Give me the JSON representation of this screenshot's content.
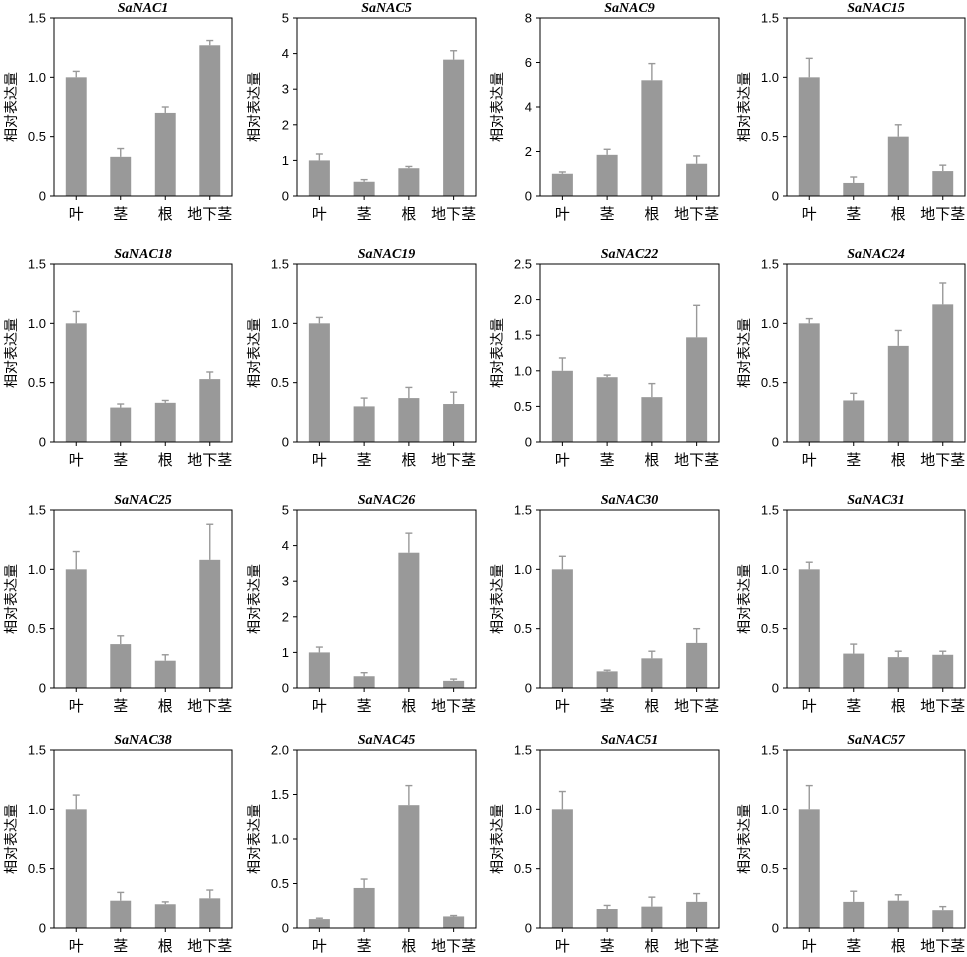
{
  "chart_data": [
    {
      "type": "bar",
      "title": "SaNAC1",
      "ylabel": "相对表达量",
      "categories": [
        "叶",
        "茎",
        "根",
        "地下茎"
      ],
      "values": [
        1.0,
        0.33,
        0.7,
        1.27
      ],
      "errors": [
        0.05,
        0.07,
        0.05,
        0.04
      ],
      "ylim": [
        0,
        1.5
      ],
      "yticks": [
        "0",
        "0.5",
        "1.0",
        "1.5"
      ],
      "ytick_values": [
        0,
        0.5,
        1.0,
        1.5
      ]
    },
    {
      "type": "bar",
      "title": "SaNAC5",
      "ylabel": "相对表达量",
      "categories": [
        "叶",
        "茎",
        "根",
        "地下茎"
      ],
      "values": [
        1.0,
        0.4,
        0.78,
        3.83
      ],
      "errors": [
        0.18,
        0.06,
        0.05,
        0.25
      ],
      "ylim": [
        0,
        5
      ],
      "yticks": [
        "0",
        "1",
        "2",
        "3",
        "4",
        "5"
      ],
      "ytick_values": [
        0,
        1,
        2,
        3,
        4,
        5
      ]
    },
    {
      "type": "bar",
      "title": "SaNAC9",
      "ylabel": "相对表达量",
      "categories": [
        "叶",
        "茎",
        "根",
        "地下茎"
      ],
      "values": [
        1.0,
        1.85,
        5.2,
        1.45
      ],
      "errors": [
        0.08,
        0.25,
        0.75,
        0.35
      ],
      "ylim": [
        0,
        8
      ],
      "yticks": [
        "0",
        "2",
        "4",
        "6",
        "8"
      ],
      "ytick_values": [
        0,
        2,
        4,
        6,
        8
      ]
    },
    {
      "type": "bar",
      "title": "SaNAC15",
      "ylabel": "相对表达量",
      "categories": [
        "叶",
        "茎",
        "根",
        "地下茎"
      ],
      "values": [
        1.0,
        0.11,
        0.5,
        0.21
      ],
      "errors": [
        0.16,
        0.05,
        0.1,
        0.05
      ],
      "ylim": [
        0,
        1.5
      ],
      "yticks": [
        "0",
        "0.5",
        "1.0",
        "1.5"
      ],
      "ytick_values": [
        0,
        0.5,
        1.0,
        1.5
      ]
    },
    {
      "type": "bar",
      "title": "SaNAC18",
      "ylabel": "相对表达量",
      "categories": [
        "叶",
        "茎",
        "根",
        "地下茎"
      ],
      "values": [
        1.0,
        0.29,
        0.33,
        0.53
      ],
      "errors": [
        0.1,
        0.03,
        0.02,
        0.06
      ],
      "ylim": [
        0,
        1.5
      ],
      "yticks": [
        "0",
        "0.5",
        "1.0",
        "1.5"
      ],
      "ytick_values": [
        0,
        0.5,
        1.0,
        1.5
      ]
    },
    {
      "type": "bar",
      "title": "SaNAC19",
      "ylabel": "相对表达量",
      "categories": [
        "叶",
        "茎",
        "根",
        "地下茎"
      ],
      "values": [
        1.0,
        0.3,
        0.37,
        0.32
      ],
      "errors": [
        0.05,
        0.07,
        0.09,
        0.1
      ],
      "ylim": [
        0,
        1.5
      ],
      "yticks": [
        "0",
        "0.5",
        "1.0",
        "1.5"
      ],
      "ytick_values": [
        0,
        0.5,
        1.0,
        1.5
      ]
    },
    {
      "type": "bar",
      "title": "SaNAC22",
      "ylabel": "相对表达量",
      "categories": [
        "叶",
        "茎",
        "根",
        "地下茎"
      ],
      "values": [
        1.0,
        0.91,
        0.63,
        1.47
      ],
      "errors": [
        0.18,
        0.03,
        0.19,
        0.45
      ],
      "ylim": [
        0,
        2.5
      ],
      "yticks": [
        "0",
        "0.5",
        "1.0",
        "1.5",
        "2.0",
        "2.5"
      ],
      "ytick_values": [
        0,
        0.5,
        1.0,
        1.5,
        2.0,
        2.5
      ]
    },
    {
      "type": "bar",
      "title": "SaNAC24",
      "ylabel": "相对表达量",
      "categories": [
        "叶",
        "茎",
        "根",
        "地下茎"
      ],
      "values": [
        1.0,
        0.35,
        0.81,
        1.16
      ],
      "errors": [
        0.04,
        0.06,
        0.13,
        0.18
      ],
      "ylim": [
        0,
        1.5
      ],
      "yticks": [
        "0",
        "0.5",
        "1.0",
        "1.5"
      ],
      "ytick_values": [
        0,
        0.5,
        1.0,
        1.5
      ]
    },
    {
      "type": "bar",
      "title": "SaNAC25",
      "ylabel": "相对表达量",
      "categories": [
        "叶",
        "茎",
        "根",
        "地下茎"
      ],
      "values": [
        1.0,
        0.37,
        0.23,
        1.08
      ],
      "errors": [
        0.15,
        0.07,
        0.05,
        0.3
      ],
      "ylim": [
        0,
        1.5
      ],
      "yticks": [
        "0",
        "0.5",
        "1.0",
        "1.5"
      ],
      "ytick_values": [
        0,
        0.5,
        1.0,
        1.5
      ]
    },
    {
      "type": "bar",
      "title": "SaNAC26",
      "ylabel": "相对表达量",
      "categories": [
        "叶",
        "茎",
        "根",
        "地下茎"
      ],
      "values": [
        1.0,
        0.33,
        3.8,
        0.2
      ],
      "errors": [
        0.15,
        0.1,
        0.55,
        0.05
      ],
      "ylim": [
        0,
        5
      ],
      "yticks": [
        "0",
        "1",
        "2",
        "3",
        "4",
        "5"
      ],
      "ytick_values": [
        0,
        1,
        2,
        3,
        4,
        5
      ]
    },
    {
      "type": "bar",
      "title": "SaNAC30",
      "ylabel": "相对表达量",
      "categories": [
        "叶",
        "茎",
        "根",
        "地下茎"
      ],
      "values": [
        1.0,
        0.14,
        0.25,
        0.38
      ],
      "errors": [
        0.11,
        0.01,
        0.06,
        0.12
      ],
      "ylim": [
        0,
        1.5
      ],
      "yticks": [
        "0",
        "0.5",
        "1.0",
        "1.5"
      ],
      "ytick_values": [
        0,
        0.5,
        1.0,
        1.5
      ]
    },
    {
      "type": "bar",
      "title": "SaNAC31",
      "ylabel": "相对表达量",
      "categories": [
        "叶",
        "茎",
        "根",
        "地下茎"
      ],
      "values": [
        1.0,
        0.29,
        0.26,
        0.28
      ],
      "errors": [
        0.06,
        0.08,
        0.05,
        0.03
      ],
      "ylim": [
        0,
        1.5
      ],
      "yticks": [
        "0",
        "0.5",
        "1.0",
        "1.5"
      ],
      "ytick_values": [
        0,
        0.5,
        1.0,
        1.5
      ]
    },
    {
      "type": "bar",
      "title": "SaNAC38",
      "ylabel": "相对表达量",
      "categories": [
        "叶",
        "茎",
        "根",
        "地下茎"
      ],
      "values": [
        1.0,
        0.23,
        0.2,
        0.25
      ],
      "errors": [
        0.12,
        0.07,
        0.02,
        0.07
      ],
      "ylim": [
        0,
        1.5
      ],
      "yticks": [
        "0",
        "0.5",
        "1.0",
        "1.5"
      ],
      "ytick_values": [
        0,
        0.5,
        1.0,
        1.5
      ]
    },
    {
      "type": "bar",
      "title": "SaNAC45",
      "ylabel": "相对表达量",
      "categories": [
        "叶",
        "茎",
        "根",
        "地下茎"
      ],
      "values": [
        0.1,
        0.45,
        1.38,
        0.13
      ],
      "errors": [
        0.01,
        0.1,
        0.22,
        0.01
      ],
      "ylim": [
        0,
        2.0
      ],
      "yticks": [
        "0",
        "0.5",
        "1.0",
        "1.5",
        "2.0"
      ],
      "ytick_values": [
        0,
        0.5,
        1.0,
        1.5,
        2.0
      ]
    },
    {
      "type": "bar",
      "title": "SaNAC51",
      "ylabel": "相对表达量",
      "categories": [
        "叶",
        "茎",
        "根",
        "地下茎"
      ],
      "values": [
        1.0,
        0.16,
        0.18,
        0.22
      ],
      "errors": [
        0.15,
        0.03,
        0.08,
        0.07
      ],
      "ylim": [
        0,
        1.5
      ],
      "yticks": [
        "0",
        "0.5",
        "1.0",
        "1.5"
      ],
      "ytick_values": [
        0,
        0.5,
        1.0,
        1.5
      ]
    },
    {
      "type": "bar",
      "title": "SaNAC57",
      "ylabel": "相对表达量",
      "categories": [
        "叶",
        "茎",
        "根",
        "地下茎"
      ],
      "values": [
        1.0,
        0.22,
        0.23,
        0.15
      ],
      "errors": [
        0.2,
        0.09,
        0.05,
        0.03
      ],
      "ylim": [
        0,
        1.5
      ],
      "yticks": [
        "0",
        "0.5",
        "1.0",
        "1.5"
      ],
      "ytick_values": [
        0,
        0.5,
        1.0,
        1.5
      ]
    }
  ],
  "colors": {
    "bar": "#999999",
    "axis": "#000000",
    "background": "#ffffff"
  }
}
